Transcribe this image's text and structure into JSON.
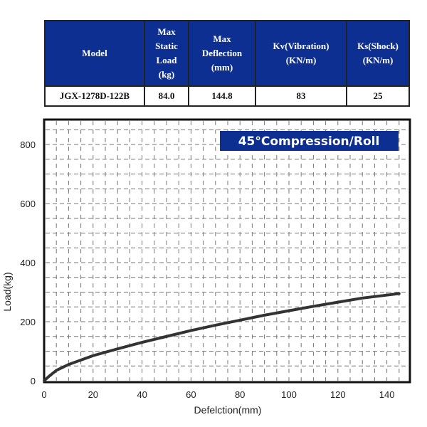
{
  "table": {
    "headers": [
      "Model",
      "Max\nStatic\nLoad\n(kg)",
      "Max\nDeflection\n(mm)",
      "Kv(Vibration)\n(KN/m)",
      "Ks(Shock)\n(KN/m)"
    ],
    "rows": [
      [
        "JGX-1278D-122B",
        "84.0",
        "144.8",
        "83",
        "25"
      ]
    ],
    "header_color": "#0d2f91"
  },
  "chart_data": {
    "type": "line",
    "title": "45°Compression/Roll",
    "xlabel": "Defelction(mm)",
    "ylabel": "Load(kg)",
    "xlim": [
      0,
      150
    ],
    "ylim": [
      0,
      880
    ],
    "xticks": [
      0,
      20,
      40,
      60,
      80,
      100,
      120,
      140
    ],
    "yticks": [
      0,
      200,
      400,
      600,
      800
    ],
    "grid": true,
    "legend_box_color": "#0d2f91",
    "series": [
      {
        "x": [
          0,
          2,
          5,
          10,
          20,
          30,
          40,
          50,
          60,
          70,
          80,
          90,
          100,
          110,
          120,
          130,
          145
        ],
        "y": [
          0,
          15,
          35,
          55,
          85,
          108,
          130,
          150,
          170,
          188,
          205,
          222,
          237,
          252,
          266,
          280,
          295
        ],
        "color": "#333333"
      }
    ]
  }
}
